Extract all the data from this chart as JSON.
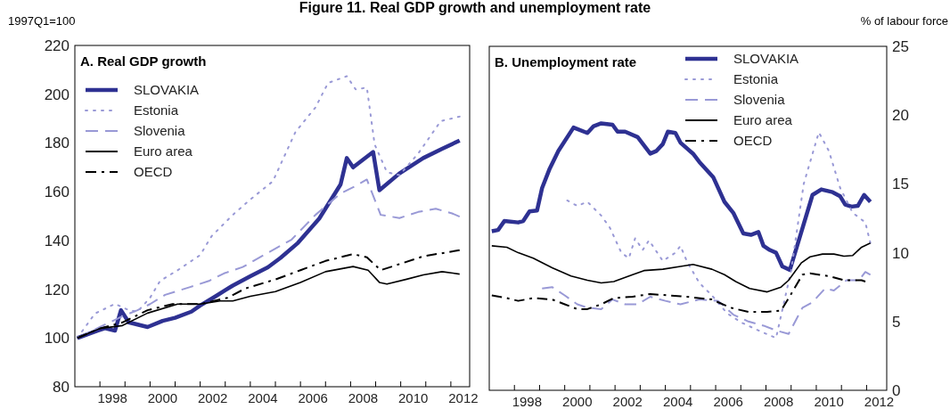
{
  "chart_data": [
    {
      "type": "line",
      "title": "Figure 11. Real GDP growth and unemployment rate",
      "subtitle": "A. Real GDP growth",
      "ylabel": "1997Q1=100",
      "xlim": [
        1997,
        2012.75
      ],
      "xticks": [
        {
          "value": 1998,
          "label": null
        },
        {
          "value": 1998.5,
          "label": "1998"
        },
        {
          "value": 1999,
          "label": null
        },
        {
          "value": 2000,
          "label": null
        },
        {
          "value": 2000.5,
          "label": "2000"
        },
        {
          "value": 2001,
          "label": null
        },
        {
          "value": 2002,
          "label": null
        },
        {
          "value": 2002.5,
          "label": "2002"
        },
        {
          "value": 2003,
          "label": null
        },
        {
          "value": 2004,
          "label": null
        },
        {
          "value": 2004.5,
          "label": "2004"
        },
        {
          "value": 2005,
          "label": null
        },
        {
          "value": 2006,
          "label": null
        },
        {
          "value": 2006.5,
          "label": "2006"
        },
        {
          "value": 2007,
          "label": null
        },
        {
          "value": 2008,
          "label": null
        },
        {
          "value": 2008.5,
          "label": "2008"
        },
        {
          "value": 2009,
          "label": null
        },
        {
          "value": 2010,
          "label": null
        },
        {
          "value": 2010.5,
          "label": "2010"
        },
        {
          "value": 2011,
          "label": null
        },
        {
          "value": 2012,
          "label": null
        },
        {
          "value": 2012.5,
          "label": "2012"
        }
      ],
      "ylim": [
        80,
        220
      ],
      "yticks": [
        80,
        100,
        120,
        140,
        160,
        180,
        200,
        220
      ],
      "grid": false,
      "legend": "top left",
      "series": [
        {
          "name": "SLOVAKIA",
          "color": "#2e3192",
          "line_style": "solid",
          "x": [
            1997.1,
            1997.9,
            1998.2,
            1998.6,
            1998.84,
            1999.15,
            1999.9,
            2000.5,
            2001,
            2001.65,
            2002,
            2002.6,
            2003.3,
            2004,
            2004.7,
            2005.2,
            2005.9,
            2006.75,
            2007.6,
            2007.85,
            2008.1,
            2008.9,
            2009.15,
            2009.95,
            2010.9,
            2011.65,
            2012.35
          ],
          "values": [
            100,
            103,
            104,
            103,
            111.4,
            106.4,
            104.5,
            107,
            108.3,
            110.8,
            113.3,
            117,
            121.5,
            125.3,
            129,
            132.8,
            139,
            149,
            163,
            173.8,
            170,
            176.3,
            160.6,
            167.5,
            173.8,
            177.6,
            181
          ]
        },
        {
          "name": "Estonia",
          "color": "#9999d6",
          "line_style": "dotted",
          "x": [
            1997.1,
            1997.8,
            1998.6,
            1999.15,
            1999.5,
            2000,
            2000.4,
            2001.1,
            2002,
            2002.45,
            2003.3,
            2004,
            2004.9,
            2005.8,
            2006.6,
            2007.1,
            2007.85,
            2008.2,
            2008.65,
            2008.96,
            2009.45,
            2009.95,
            2010.7,
            2011.6,
            2012.35
          ],
          "values": [
            100,
            110,
            114,
            111.4,
            110.8,
            116.5,
            123.4,
            127.8,
            134,
            141.7,
            150.5,
            156.8,
            164.3,
            184.5,
            194.6,
            204.6,
            207.4,
            202,
            202.7,
            179.4,
            168,
            166.8,
            175.7,
            189,
            190.8
          ]
        },
        {
          "name": "Slovenia",
          "color": "#9999d6",
          "line_style": "dashed",
          "x": [
            1997.1,
            1998,
            1998.9,
            1999.5,
            2000,
            2000.6,
            2001.6,
            2002.35,
            2002.95,
            2003.7,
            2004.55,
            2005.65,
            2006.6,
            2007.6,
            2008.1,
            2008.65,
            2009.2,
            2009.95,
            2010.7,
            2011.4,
            2012.05,
            2012.35
          ],
          "values": [
            100,
            104.5,
            108.9,
            111.4,
            113.9,
            117.7,
            120.9,
            123.4,
            126.5,
            129.1,
            134.1,
            140.4,
            150.5,
            159.3,
            161.8,
            165,
            150.5,
            149.2,
            151.7,
            153,
            151.1,
            149.8
          ]
        },
        {
          "name": "Euro area",
          "color": "#000000",
          "line_style": "solid",
          "x": [
            1997.1,
            1998,
            1998.9,
            1999.9,
            2001.1,
            2002,
            2002.8,
            2003.3,
            2004,
            2005,
            2006,
            2007,
            2008.1,
            2008.7,
            2009.15,
            2009.45,
            2010.2,
            2010.9,
            2011.65,
            2012.35
          ],
          "values": [
            100,
            103.9,
            105.1,
            110.2,
            113.9,
            113.9,
            115.2,
            115.2,
            117.1,
            119,
            122.8,
            127.2,
            129.3,
            127.8,
            122.8,
            122.1,
            124,
            125.9,
            127.2,
            126.2
          ]
        },
        {
          "name": "OECD",
          "color": "#000000",
          "line_style": "dashdot",
          "x": [
            1997.1,
            1998,
            1998.9,
            1999.9,
            2000.9,
            2002,
            2003.1,
            2003.8,
            2005,
            2006,
            2007,
            2008.1,
            2008.65,
            2009.2,
            2009.95,
            2010.9,
            2012.35
          ],
          "values": [
            100,
            103.9,
            106.4,
            111.4,
            113.9,
            113.9,
            116.5,
            120.3,
            124,
            127.8,
            131.6,
            134.4,
            133.1,
            127.8,
            130.3,
            133.5,
            136
          ]
        }
      ]
    },
    {
      "type": "line",
      "title": "B. Unemployment rate",
      "y2label": "% of labour force",
      "xlim": [
        1997,
        2012.8
      ],
      "xticks": [
        {
          "value": 1998,
          "label": null
        },
        {
          "value": 1998.5,
          "label": "1998"
        },
        {
          "value": 1999,
          "label": null
        },
        {
          "value": 2000,
          "label": null
        },
        {
          "value": 2000.5,
          "label": "2000"
        },
        {
          "value": 2001,
          "label": null
        },
        {
          "value": 2002,
          "label": null
        },
        {
          "value": 2002.5,
          "label": "2002"
        },
        {
          "value": 2003,
          "label": null
        },
        {
          "value": 2004,
          "label": null
        },
        {
          "value": 2004.5,
          "label": "2004"
        },
        {
          "value": 2005,
          "label": null
        },
        {
          "value": 2006,
          "label": null
        },
        {
          "value": 2006.5,
          "label": "2006"
        },
        {
          "value": 2007,
          "label": null
        },
        {
          "value": 2008,
          "label": null
        },
        {
          "value": 2008.5,
          "label": "2008"
        },
        {
          "value": 2009,
          "label": null
        },
        {
          "value": 2010,
          "label": null
        },
        {
          "value": 2010.5,
          "label": "2010"
        },
        {
          "value": 2011,
          "label": null
        },
        {
          "value": 2012,
          "label": null
        },
        {
          "value": 2012.5,
          "label": "2012"
        }
      ],
      "y2lim": [
        0,
        25
      ],
      "y2ticks": [
        0,
        5,
        10,
        15,
        20,
        25
      ],
      "grid": false,
      "legend": "top right",
      "series": [
        {
          "name": "SLOVAKIA",
          "color": "#2e3192",
          "line_style": "solid",
          "axis": "y2",
          "x": [
            1997.1,
            1997.35,
            1997.6,
            1998.15,
            1998.35,
            1998.6,
            1998.9,
            1999.1,
            1999.4,
            1999.75,
            2000.35,
            2000.9,
            2001.15,
            2001.45,
            2001.9,
            2002.1,
            2002.4,
            2002.9,
            2003.4,
            2003.65,
            2003.9,
            2004.1,
            2004.4,
            2004.6,
            2005.1,
            2005.35,
            2005.9,
            2006.35,
            2006.7,
            2007.1,
            2007.4,
            2007.7,
            2007.9,
            2008.15,
            2008.4,
            2008.65,
            2008.95,
            2009.85,
            2010.2,
            2010.65,
            2010.95,
            2011.15,
            2011.4,
            2011.65,
            2011.9,
            2012.15
          ],
          "values": [
            11.56,
            11.65,
            12.3,
            12.2,
            12.3,
            13,
            13.06,
            14.7,
            16.1,
            17.4,
            19.1,
            18.7,
            19.2,
            19.4,
            19.3,
            18.8,
            18.8,
            18.4,
            17.2,
            17.4,
            17.9,
            18.8,
            18.7,
            18,
            17.2,
            16.6,
            15.5,
            13.7,
            12.9,
            11.4,
            11.3,
            11.5,
            10.5,
            10.2,
            10,
            9,
            8.75,
            14.2,
            14.6,
            14.4,
            14.1,
            13.5,
            13.35,
            13.4,
            14.2,
            13.7
          ]
        },
        {
          "name": "Estonia",
          "color": "#9999d6",
          "line_style": "dotted",
          "axis": "y2",
          "x": [
            2000.1,
            2000.5,
            2000.9,
            2001.45,
            2001.8,
            2002.25,
            2002.55,
            2002.8,
            2003.1,
            2003.35,
            2003.9,
            2004.4,
            2004.6,
            2004.85,
            2005.35,
            2005.85,
            2006.45,
            2007.05,
            2007.7,
            2008.4,
            2009,
            2009.5,
            2010.1,
            2010.5,
            2010.95,
            2011.45,
            2011.95,
            2012.15
          ],
          "values": [
            13.8,
            13.4,
            13.7,
            12.7,
            11.8,
            10,
            9.6,
            11.05,
            10.2,
            10.9,
            9.4,
            10,
            10.5,
            9.4,
            7.8,
            6.9,
            5.6,
            4.9,
            4.35,
            3.8,
            8.7,
            15,
            18.75,
            17.4,
            14.7,
            12.9,
            12.2,
            10.7
          ]
        },
        {
          "name": "Slovenia",
          "color": "#9999d6",
          "line_style": "dashed",
          "axis": "y2",
          "x": [
            1999.1,
            1999.5,
            2000,
            2000.5,
            2000.9,
            2001.45,
            2001.9,
            2002.4,
            2002.9,
            2003.4,
            2004,
            2004.6,
            2005.35,
            2006.1,
            2006.7,
            2007.3,
            2007.9,
            2008.4,
            2008.9,
            2009.45,
            2009.85,
            2010.35,
            2010.7,
            2011.2,
            2011.7,
            2011.95,
            2012.15
          ],
          "values": [
            7.4,
            7.5,
            6.9,
            6.25,
            6,
            5.9,
            6.6,
            6.25,
            6.25,
            6.8,
            6.5,
            6.25,
            6.6,
            6.5,
            5.5,
            5,
            4.7,
            4.35,
            4.1,
            6,
            6.4,
            7.4,
            7.25,
            8,
            8,
            8.6,
            8.4
          ]
        },
        {
          "name": "Euro area",
          "color": "#000000",
          "line_style": "solid",
          "axis": "y2",
          "x": [
            1997.1,
            1997.7,
            1998.15,
            1998.75,
            1999.5,
            2000.25,
            2000.9,
            2001.45,
            2001.95,
            2002.7,
            2003.15,
            2003.9,
            2004.6,
            2005.1,
            2005.85,
            2006.35,
            2006.8,
            2007.35,
            2008.05,
            2008.6,
            2008.9,
            2009.4,
            2009.75,
            2010.25,
            2010.7,
            2011.1,
            2011.45,
            2011.8,
            2012.15
          ],
          "values": [
            10.5,
            10.4,
            10,
            9.6,
            8.9,
            8.3,
            8,
            7.8,
            7.9,
            8.4,
            8.7,
            8.8,
            9,
            9.15,
            8.8,
            8.4,
            7.9,
            7.4,
            7.15,
            7.5,
            8,
            9.25,
            9.7,
            9.9,
            9.9,
            9.75,
            9.8,
            10.4,
            10.7
          ]
        },
        {
          "name": "OECD",
          "color": "#000000",
          "line_style": "dashdot",
          "axis": "y2",
          "x": [
            1997.1,
            1997.7,
            1998.15,
            1998.75,
            1999.5,
            2000,
            2000.5,
            2000.9,
            2001.45,
            2001.95,
            2002.7,
            2003.4,
            2004.1,
            2004.85,
            2005.85,
            2006.6,
            2007.3,
            2008.05,
            2008.6,
            2009,
            2009.45,
            2009.75,
            2010.5,
            2011.1,
            2011.8,
            2011.95
          ],
          "values": [
            6.9,
            6.7,
            6.5,
            6.7,
            6.6,
            6.25,
            5.9,
            5.9,
            6.25,
            6.7,
            6.8,
            7,
            6.9,
            6.8,
            6.6,
            6,
            5.7,
            5.7,
            5.8,
            7,
            8.4,
            8.5,
            8.3,
            8,
            8,
            7.9
          ]
        }
      ]
    }
  ]
}
